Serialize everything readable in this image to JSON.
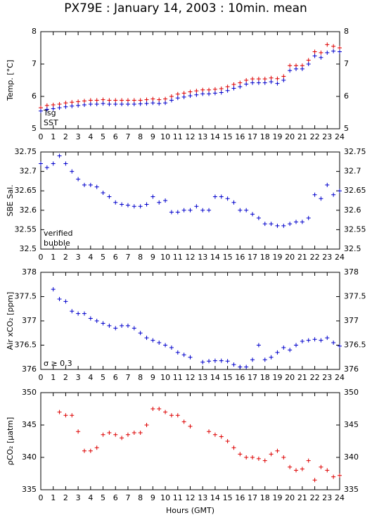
{
  "title": "PX79E : January 14, 2003 : 10min. mean",
  "chart_data": [
    {
      "type": "scatter",
      "ylabel": "Temp. [°C]",
      "xlim": [
        0,
        24
      ],
      "xticks": [
        0,
        1,
        2,
        3,
        4,
        5,
        6,
        7,
        8,
        9,
        10,
        11,
        12,
        13,
        14,
        15,
        16,
        17,
        18,
        19,
        20,
        21,
        22,
        23,
        24
      ],
      "ylim": [
        5,
        8
      ],
      "yticks": [
        5,
        6,
        7,
        8
      ],
      "x": [
        0,
        0.5,
        1,
        1.5,
        2,
        2.5,
        3,
        3.5,
        4,
        4.5,
        5,
        5.5,
        6,
        6.5,
        7,
        7.5,
        8,
        8.5,
        9,
        9.5,
        10,
        10.5,
        11,
        11.5,
        12,
        12.5,
        13,
        13.5,
        14,
        14.5,
        15,
        15.5,
        16,
        16.5,
        17,
        17.5,
        18,
        18.5,
        19,
        19.5,
        20,
        20.5,
        21,
        21.5,
        22,
        22.5,
        23,
        23.5,
        24
      ],
      "series": [
        {
          "name": "Tsg",
          "color": "#dd0000",
          "values": [
            5.65,
            5.72,
            5.74,
            5.76,
            5.8,
            5.82,
            5.84,
            5.86,
            5.88,
            5.88,
            5.9,
            5.88,
            5.88,
            5.88,
            5.88,
            5.88,
            5.88,
            5.9,
            5.92,
            5.9,
            5.92,
            6.0,
            6.07,
            6.1,
            6.14,
            6.17,
            6.2,
            6.2,
            6.22,
            6.24,
            6.3,
            6.37,
            6.42,
            6.5,
            6.54,
            6.54,
            6.54,
            6.57,
            6.55,
            6.62,
            6.95,
            6.95,
            6.95,
            7.12,
            7.38,
            7.35,
            7.6,
            7.55,
            7.5
          ]
        },
        {
          "name": "SST",
          "color": "#0000cc",
          "values": [
            5.55,
            5.6,
            5.62,
            5.65,
            5.68,
            5.7,
            5.72,
            5.74,
            5.76,
            5.76,
            5.78,
            5.76,
            5.76,
            5.76,
            5.76,
            5.76,
            5.77,
            5.78,
            5.8,
            5.78,
            5.8,
            5.88,
            5.95,
            5.98,
            6.02,
            6.05,
            6.08,
            6.08,
            6.1,
            6.12,
            6.18,
            6.25,
            6.3,
            6.38,
            6.42,
            6.42,
            6.42,
            6.45,
            6.4,
            6.5,
            6.8,
            6.85,
            6.85,
            7.0,
            7.25,
            7.2,
            7.35,
            7.4,
            7.38
          ]
        }
      ]
    },
    {
      "type": "scatter",
      "ylabel": "SBE Sal.",
      "xlim": [
        0,
        24
      ],
      "xticks": [
        0,
        1,
        2,
        3,
        4,
        5,
        6,
        7,
        8,
        9,
        10,
        11,
        12,
        13,
        14,
        15,
        16,
        17,
        18,
        19,
        20,
        21,
        22,
        23,
        24
      ],
      "ylim": [
        32.5,
        32.75
      ],
      "yticks": [
        32.5,
        32.55,
        32.6,
        32.65,
        32.7,
        32.75
      ],
      "annotations": [
        {
          "text": "bubble",
          "color": "#cc00cc"
        }
      ],
      "x": [
        0,
        0.5,
        1,
        1.5,
        2,
        2.5,
        3,
        3.5,
        4,
        4.5,
        5,
        5.5,
        6,
        6.5,
        7,
        7.5,
        8,
        8.5,
        9,
        9.5,
        10,
        10.5,
        11,
        11.5,
        12,
        12.5,
        13,
        13.5,
        14,
        14.5,
        15,
        15.5,
        16,
        16.5,
        17,
        17.5,
        18,
        18.5,
        19,
        19.5,
        20,
        20.5,
        21,
        21.5,
        22,
        22.5,
        23,
        23.5,
        24
      ],
      "series": [
        {
          "name": "verified",
          "color": "#0000cc",
          "values": [
            32.72,
            32.71,
            32.72,
            32.74,
            32.72,
            32.7,
            32.68,
            32.665,
            32.665,
            32.66,
            32.645,
            32.635,
            32.62,
            32.615,
            32.613,
            32.61,
            32.61,
            32.615,
            32.635,
            32.62,
            32.625,
            32.595,
            32.595,
            32.6,
            32.6,
            32.61,
            32.6,
            32.6,
            32.635,
            32.635,
            32.63,
            32.62,
            32.6,
            32.6,
            32.59,
            32.58,
            32.565,
            32.565,
            32.56,
            32.56,
            32.565,
            32.57,
            32.57,
            32.58,
            32.64,
            32.63,
            32.665,
            32.64,
            32.65
          ]
        }
      ]
    },
    {
      "type": "scatter",
      "ylabel": "Air xCO₂ [ppm]",
      "xlim": [
        0,
        24
      ],
      "xticks": [
        0,
        1,
        2,
        3,
        4,
        5,
        6,
        7,
        8,
        9,
        10,
        11,
        12,
        13,
        14,
        15,
        16,
        17,
        18,
        19,
        20,
        21,
        22,
        23,
        24
      ],
      "ylim": [
        376,
        378
      ],
      "yticks": [
        376,
        376.5,
        377,
        377.5,
        378
      ],
      "annotations": [
        {
          "text": "σ ≥ 0.3",
          "color": "#cc00cc"
        }
      ],
      "x": [
        0,
        0.5,
        1,
        1.5,
        2,
        2.5,
        3,
        3.5,
        4,
        4.5,
        5,
        5.5,
        6,
        6.5,
        7,
        7.5,
        8,
        8.5,
        9,
        9.5,
        10,
        10.5,
        11,
        11.5,
        12,
        12.5,
        13,
        13.5,
        14,
        14.5,
        15,
        15.5,
        16,
        16.5,
        17,
        17.5,
        18,
        18.5,
        19,
        19.5,
        20,
        20.5,
        21,
        21.5,
        22,
        22.5,
        23,
        23.5,
        24
      ],
      "series": [
        {
          "name": null,
          "color": "#0000cc",
          "values": [
            null,
            null,
            377.65,
            377.45,
            377.4,
            377.2,
            377.15,
            377.15,
            377.05,
            377.0,
            376.95,
            376.9,
            376.85,
            376.9,
            376.9,
            376.85,
            376.75,
            376.65,
            376.6,
            376.55,
            376.5,
            376.45,
            376.35,
            376.3,
            376.25,
            null,
            376.15,
            376.17,
            376.18,
            376.18,
            376.17,
            376.1,
            376.05,
            376.05,
            376.2,
            376.5,
            376.2,
            376.25,
            376.35,
            376.45,
            376.4,
            376.5,
            376.58,
            376.6,
            376.62,
            376.6,
            376.65,
            376.55,
            376.48
          ]
        }
      ]
    },
    {
      "type": "scatter",
      "ylabel": "ρCO₂ [μatm]",
      "xlabel": "Hours (GMT)",
      "xlim": [
        0,
        24
      ],
      "xticks": [
        0,
        1,
        2,
        3,
        4,
        5,
        6,
        7,
        8,
        9,
        10,
        11,
        12,
        13,
        14,
        15,
        16,
        17,
        18,
        19,
        20,
        21,
        22,
        23,
        24
      ],
      "ylim": [
        335,
        350
      ],
      "yticks": [
        335,
        340,
        345,
        350
      ],
      "x": [
        0,
        0.5,
        1,
        1.5,
        2,
        2.5,
        3,
        3.5,
        4,
        4.5,
        5,
        5.5,
        6,
        6.5,
        7,
        7.5,
        8,
        8.5,
        9,
        9.5,
        10,
        10.5,
        11,
        11.5,
        12,
        12.5,
        13,
        13.5,
        14,
        14.5,
        15,
        15.5,
        16,
        16.5,
        17,
        17.5,
        18,
        18.5,
        19,
        19.5,
        20,
        20.5,
        21,
        21.5,
        22,
        22.5,
        23,
        23.5,
        24
      ],
      "series": [
        {
          "name": null,
          "color": "#dd0000",
          "values": [
            null,
            null,
            null,
            347,
            346.5,
            346.5,
            344,
            341,
            341,
            341.5,
            343.5,
            343.8,
            343.5,
            343,
            343.5,
            343.8,
            343.8,
            345,
            347.5,
            347.5,
            347,
            346.5,
            346.5,
            345.5,
            344.8,
            null,
            null,
            344,
            343.5,
            343.2,
            342.5,
            341.5,
            340.5,
            340,
            340,
            339.8,
            339.5,
            340.5,
            341,
            340,
            338.5,
            338,
            338.2,
            339.5,
            336.5,
            338.5,
            338,
            337,
            337.2
          ]
        }
      ]
    }
  ]
}
